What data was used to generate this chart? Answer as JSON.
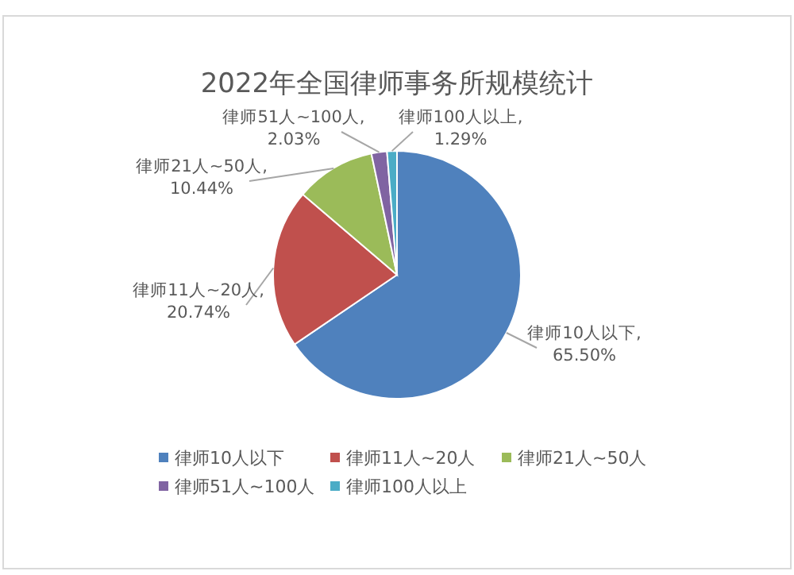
{
  "chart_data": {
    "type": "pie",
    "title": "2022年全国律师事务所规模统计",
    "categories": [
      "律师10人以下",
      "律师11人~20人",
      "律师21人~50人",
      "律师51人~100人",
      "律师100人以上"
    ],
    "values": [
      65.5,
      20.74,
      10.44,
      2.03,
      1.29
    ],
    "colors": [
      "#4f81bd",
      "#c0504d",
      "#9bbb59",
      "#8064a2",
      "#4bacc6"
    ],
    "value_labels": [
      "律师10人以下,\n65.50%",
      "律师11人~20人,\n20.74%",
      "律师21人~50人,\n10.44%",
      "律师51人~100人,\n2.03%",
      "律师100人以上,\n1.29%"
    ],
    "legend": "bottom"
  }
}
